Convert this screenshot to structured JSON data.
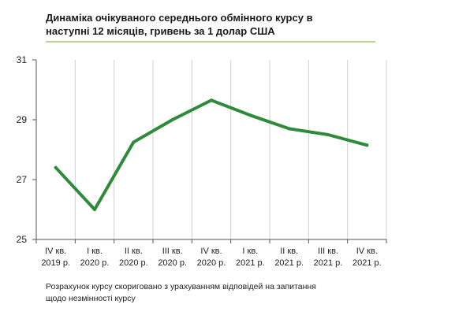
{
  "title": "Динаміка очікуваного середнього обмінного курсу в\nнаступні 12 місяців, гривень за 1 долар США",
  "note": "Розрахунок курсу скориговано з урахуванням відповідей на запитання\nщодо незмінності курсу",
  "chart_data": {
    "type": "line",
    "categories": [
      [
        "IV кв.",
        "2019 р."
      ],
      [
        "I кв.",
        "2020 р."
      ],
      [
        "II кв.",
        "2020 р."
      ],
      [
        "III кв.",
        "2020 р."
      ],
      [
        "IV кв.",
        "2020 р."
      ],
      [
        "I кв.",
        "2021 р."
      ],
      [
        "II кв.",
        "2021 р."
      ],
      [
        "III кв.",
        "2021 р."
      ],
      [
        "IV кв.",
        "2021 р."
      ]
    ],
    "series": [
      {
        "values": [
          27.4,
          26.0,
          28.25,
          29.0,
          29.65,
          29.15,
          28.7,
          28.5,
          28.15
        ]
      }
    ],
    "ylim": [
      25,
      31
    ],
    "yticks": [
      25,
      27,
      29,
      31
    ],
    "grid": "vertical",
    "colors": {
      "line": "#2e8b3a",
      "grid": "#d0d0d0",
      "title_rule": "#b7d58f"
    }
  }
}
